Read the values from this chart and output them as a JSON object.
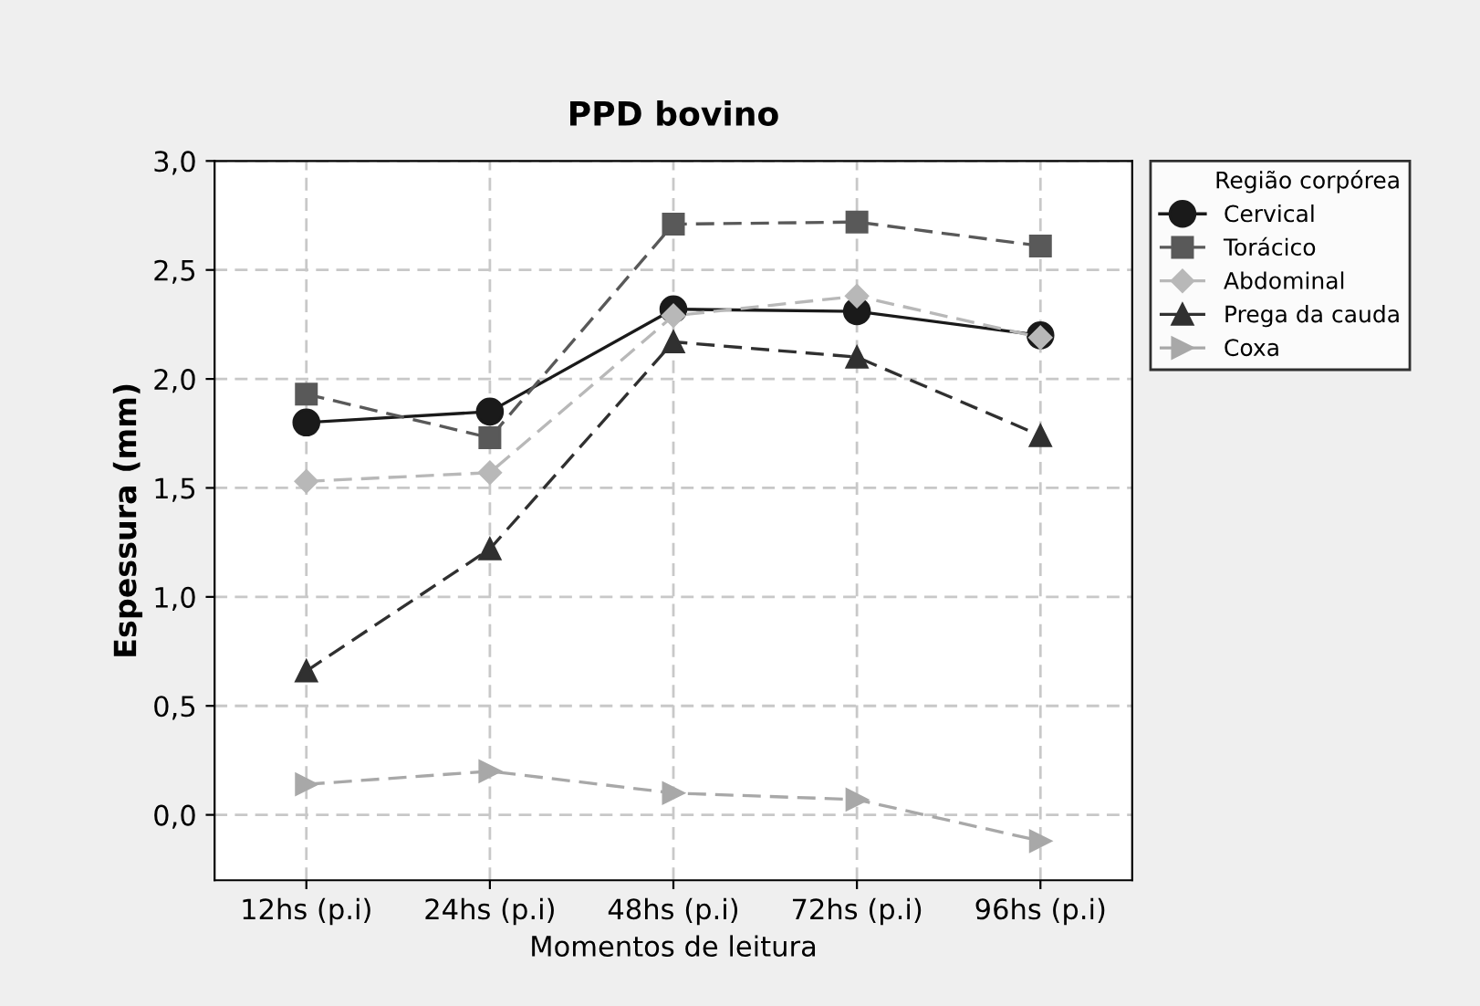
{
  "chart_data": {
    "type": "line",
    "title": "PPD bovino",
    "xlabel": "Momentos de leitura",
    "ylabel": "Espessura (mm)",
    "legend_title": "Região corpórea",
    "categories": [
      "12hs (p.i)",
      "24hs (p.i)",
      "48hs (p.i)",
      "72hs (p.i)",
      "96hs (p.i)"
    ],
    "ylim": [
      -0.3,
      3.0
    ],
    "yticks": [
      {
        "value": 0,
        "label": "0,0"
      },
      {
        "value": 0.5,
        "label": "0,5"
      },
      {
        "value": 1,
        "label": "1,0"
      },
      {
        "value": 1.5,
        "label": "1,5"
      },
      {
        "value": 2,
        "label": "2,0"
      },
      {
        "value": 2.5,
        "label": "2,5"
      },
      {
        "value": 3,
        "label": "3,0"
      }
    ],
    "grid": true,
    "legend": "top right",
    "series": [
      {
        "name": "Cervical",
        "color": "#1a1a1a",
        "marker": "circle",
        "line_style": "solid",
        "values": [
          1.8,
          1.85,
          2.32,
          2.31,
          2.2
        ]
      },
      {
        "name": "Torácico",
        "color": "#595959",
        "marker": "square",
        "line_style": "dashed",
        "values": [
          1.93,
          1.73,
          2.71,
          2.72,
          2.61
        ]
      },
      {
        "name": "Abdominal",
        "color": "#b8b8b8",
        "marker": "diamond",
        "line_style": "dashed",
        "values": [
          1.53,
          1.57,
          2.29,
          2.38,
          2.19
        ]
      },
      {
        "name": "Prega da cauda",
        "color": "#303030",
        "marker": "triangle",
        "line_style": "dashed",
        "values": [
          0.66,
          1.22,
          2.17,
          2.1,
          1.74
        ]
      },
      {
        "name": "Coxa",
        "color": "#a8a8a8",
        "marker": "triangle_right",
        "line_style": "dashed",
        "values": [
          0.14,
          0.2,
          0.1,
          0.07,
          -0.12
        ]
      }
    ]
  }
}
